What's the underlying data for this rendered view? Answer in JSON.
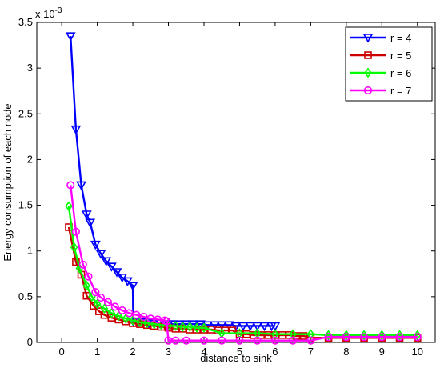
{
  "chart_data": {
    "type": "line",
    "title": "",
    "xlabel": "distance to sink",
    "ylabel": "Energy consumption of each node",
    "exponent_label": "x 10",
    "exponent_power": "-3",
    "xlim": [
      -0.7,
      10.5
    ],
    "ylim": [
      0,
      3.5
    ],
    "xticks": [
      0,
      1,
      2,
      3,
      4,
      5,
      6,
      7,
      8,
      9,
      10
    ],
    "xtick_labels": [
      "0",
      "1",
      "2",
      "3",
      "4",
      "5",
      "6",
      "7",
      "8",
      "9",
      "10"
    ],
    "yticks": [
      0,
      0.5,
      1,
      1.5,
      2,
      2.5,
      3,
      3.5
    ],
    "ytick_labels": [
      "0",
      "0.5",
      "1",
      "1.5",
      "2",
      "2.5",
      "3",
      "3.5"
    ],
    "grid": false,
    "legend_position": "top-right",
    "series": [
      {
        "name": "r = 4",
        "color": "#0000ff",
        "marker": "triangle-down",
        "x": [
          0.25,
          0.4,
          0.55,
          0.7,
          0.8,
          0.95,
          1.1,
          1.25,
          1.4,
          1.55,
          1.7,
          1.85,
          2.0,
          2.01,
          2.15,
          2.3,
          2.45,
          2.6,
          2.75,
          2.9,
          3.0,
          3.1,
          3.3,
          3.5,
          3.7,
          3.9,
          4.1,
          4.3,
          4.5,
          4.7,
          4.9,
          5.1,
          5.3,
          5.5,
          5.7,
          5.9,
          6.0
        ],
        "values": [
          3.35,
          2.33,
          1.72,
          1.4,
          1.31,
          1.07,
          0.97,
          0.89,
          0.83,
          0.77,
          0.71,
          0.67,
          0.62,
          0.23,
          0.22,
          0.22,
          0.21,
          0.21,
          0.21,
          0.2,
          0.2,
          0.2,
          0.2,
          0.2,
          0.2,
          0.2,
          0.19,
          0.19,
          0.19,
          0.19,
          0.18,
          0.18,
          0.18,
          0.18,
          0.18,
          0.18,
          0.18
        ]
      },
      {
        "name": "r = 5",
        "color": "#cc0000",
        "marker": "square",
        "x": [
          0.2,
          0.4,
          0.55,
          0.7,
          0.9,
          1.05,
          1.2,
          1.4,
          1.6,
          1.8,
          2.0,
          2.2,
          2.4,
          2.6,
          2.8,
          3.0,
          3.2,
          3.4,
          3.6,
          3.8,
          4.0,
          4.2,
          4.4,
          4.6,
          4.8,
          5.0,
          5.2,
          5.4,
          5.6,
          5.8,
          6.0,
          6.2,
          6.4,
          6.6,
          6.8,
          7.0,
          7.5,
          8.0,
          8.5,
          9.0,
          9.5,
          10.0
        ],
        "values": [
          1.26,
          0.88,
          0.74,
          0.51,
          0.4,
          0.34,
          0.3,
          0.27,
          0.25,
          0.23,
          0.21,
          0.2,
          0.19,
          0.18,
          0.17,
          0.16,
          0.15,
          0.15,
          0.14,
          0.14,
          0.14,
          0.14,
          0.13,
          0.13,
          0.13,
          0.09,
          0.09,
          0.08,
          0.08,
          0.08,
          0.08,
          0.08,
          0.08,
          0.07,
          0.07,
          0.05,
          0.05,
          0.05,
          0.05,
          0.05,
          0.05,
          0.05
        ]
      },
      {
        "name": "r = 6",
        "color": "#00ff00",
        "marker": "diamond",
        "x": [
          0.2,
          0.35,
          0.5,
          0.7,
          0.85,
          1.0,
          1.2,
          1.4,
          1.6,
          1.8,
          2.0,
          2.2,
          2.4,
          2.6,
          2.8,
          3.0,
          3.2,
          3.4,
          3.6,
          3.8,
          4.0,
          4.5,
          5.0,
          5.5,
          6.0,
          6.5,
          7.0,
          7.5,
          8.0,
          8.5,
          9.0,
          9.5,
          10.0
        ],
        "values": [
          1.49,
          1.04,
          0.81,
          0.62,
          0.5,
          0.42,
          0.37,
          0.32,
          0.29,
          0.26,
          0.24,
          0.22,
          0.21,
          0.2,
          0.19,
          0.18,
          0.18,
          0.17,
          0.17,
          0.16,
          0.16,
          0.1,
          0.1,
          0.1,
          0.09,
          0.09,
          0.09,
          0.08,
          0.08,
          0.08,
          0.08,
          0.08,
          0.08
        ]
      },
      {
        "name": "r = 7",
        "color": "#ff00ff",
        "marker": "circle",
        "x": [
          0.25,
          0.4,
          0.6,
          0.75,
          0.95,
          1.1,
          1.3,
          1.5,
          1.7,
          1.9,
          2.1,
          2.3,
          2.5,
          2.7,
          2.9,
          2.95,
          3.0,
          3.2,
          3.5,
          4.0,
          4.5,
          5.0,
          5.5,
          6.0,
          6.5,
          7.0,
          7.5,
          8.0,
          8.5,
          9.0,
          9.5,
          10.0
        ],
        "values": [
          1.72,
          1.21,
          0.85,
          0.72,
          0.55,
          0.49,
          0.44,
          0.39,
          0.35,
          0.32,
          0.3,
          0.28,
          0.26,
          0.25,
          0.24,
          0.23,
          0.02,
          0.02,
          0.02,
          0.02,
          0.02,
          0.02,
          0.02,
          0.02,
          0.02,
          0.02,
          0.06,
          0.06,
          0.06,
          0.06,
          0.06,
          0.06
        ]
      }
    ]
  }
}
